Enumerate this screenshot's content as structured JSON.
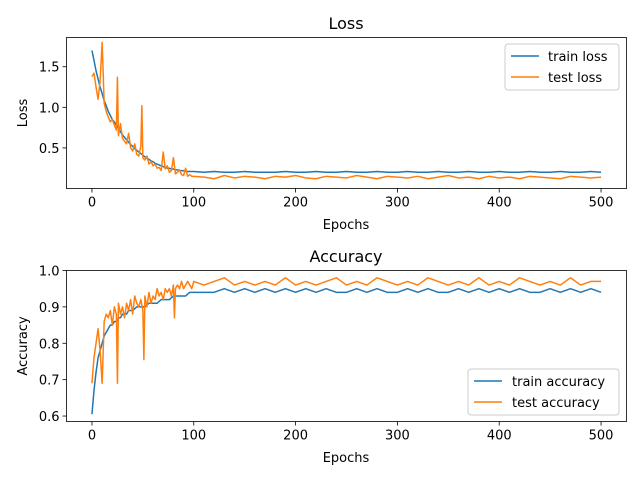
{
  "chart_data": [
    {
      "type": "line",
      "title": "Loss",
      "xlabel": "Epochs",
      "ylabel": "Loss",
      "xlim": [
        -25,
        525
      ],
      "ylim": [
        0.0,
        1.86
      ],
      "xticks": [
        0,
        100,
        200,
        300,
        400,
        500
      ],
      "yticks": [
        0.5,
        1.0,
        1.5
      ],
      "ytick_labels": [
        "0.5",
        "1.0",
        "1.5"
      ],
      "legend_position": "upper-right",
      "series": [
        {
          "name": "train loss",
          "color": "#1f77b4",
          "x": [
            0,
            2,
            4,
            6,
            8,
            10,
            12,
            14,
            16,
            18,
            20,
            22,
            24,
            26,
            28,
            30,
            32,
            34,
            36,
            38,
            40,
            42,
            44,
            46,
            48,
            50,
            52,
            54,
            56,
            58,
            60,
            62,
            64,
            66,
            68,
            70,
            72,
            74,
            76,
            78,
            80,
            82,
            84,
            86,
            88,
            90,
            92,
            94,
            96,
            98,
            100,
            110,
            120,
            130,
            140,
            150,
            160,
            170,
            180,
            190,
            200,
            210,
            220,
            230,
            240,
            250,
            260,
            270,
            280,
            290,
            300,
            310,
            320,
            330,
            340,
            350,
            360,
            370,
            380,
            390,
            400,
            410,
            420,
            430,
            440,
            450,
            460,
            470,
            480,
            490,
            500
          ],
          "y": [
            1.7,
            1.58,
            1.45,
            1.35,
            1.25,
            1.17,
            1.08,
            1.02,
            0.95,
            0.9,
            0.85,
            0.82,
            0.78,
            0.74,
            0.7,
            0.66,
            0.63,
            0.6,
            0.57,
            0.54,
            0.52,
            0.49,
            0.47,
            0.45,
            0.43,
            0.41,
            0.39,
            0.37,
            0.36,
            0.34,
            0.33,
            0.31,
            0.3,
            0.29,
            0.28,
            0.27,
            0.26,
            0.25,
            0.25,
            0.24,
            0.24,
            0.23,
            0.23,
            0.22,
            0.22,
            0.22,
            0.21,
            0.21,
            0.21,
            0.21,
            0.21,
            0.2,
            0.21,
            0.2,
            0.2,
            0.21,
            0.2,
            0.2,
            0.2,
            0.21,
            0.2,
            0.2,
            0.21,
            0.2,
            0.2,
            0.21,
            0.2,
            0.2,
            0.21,
            0.2,
            0.2,
            0.21,
            0.2,
            0.2,
            0.21,
            0.2,
            0.2,
            0.21,
            0.2,
            0.2,
            0.21,
            0.2,
            0.2,
            0.21,
            0.2,
            0.2,
            0.21,
            0.2,
            0.2,
            0.21,
            0.2
          ]
        },
        {
          "name": "test loss",
          "color": "#ff7f0e",
          "x": [
            0,
            2,
            4,
            6,
            8,
            10,
            12,
            14,
            16,
            18,
            20,
            22,
            24,
            25,
            26,
            28,
            30,
            32,
            34,
            36,
            38,
            40,
            42,
            44,
            46,
            48,
            49,
            50,
            52,
            54,
            56,
            58,
            60,
            62,
            64,
            66,
            68,
            70,
            72,
            74,
            76,
            78,
            80,
            82,
            84,
            86,
            88,
            90,
            92,
            94,
            96,
            98,
            100,
            110,
            120,
            130,
            140,
            150,
            160,
            170,
            180,
            190,
            200,
            210,
            220,
            230,
            240,
            250,
            260,
            270,
            280,
            290,
            300,
            310,
            320,
            330,
            340,
            350,
            360,
            370,
            380,
            390,
            400,
            410,
            420,
            430,
            440,
            450,
            460,
            470,
            480,
            490,
            500
          ],
          "y": [
            1.38,
            1.42,
            1.25,
            1.1,
            1.32,
            1.8,
            1.05,
            0.95,
            0.88,
            0.82,
            0.85,
            0.78,
            0.72,
            1.37,
            0.65,
            0.8,
            0.62,
            0.58,
            0.55,
            0.68,
            0.5,
            0.46,
            0.55,
            0.42,
            0.4,
            0.52,
            1.02,
            0.38,
            0.35,
            0.4,
            0.3,
            0.33,
            0.28,
            0.3,
            0.25,
            0.26,
            0.22,
            0.45,
            0.24,
            0.28,
            0.2,
            0.22,
            0.38,
            0.18,
            0.2,
            0.23,
            0.17,
            0.16,
            0.25,
            0.15,
            0.17,
            0.15,
            0.15,
            0.14,
            0.12,
            0.16,
            0.13,
            0.15,
            0.14,
            0.12,
            0.15,
            0.14,
            0.16,
            0.13,
            0.12,
            0.15,
            0.14,
            0.13,
            0.16,
            0.14,
            0.12,
            0.15,
            0.14,
            0.13,
            0.15,
            0.12,
            0.14,
            0.16,
            0.13,
            0.14,
            0.12,
            0.15,
            0.13,
            0.14,
            0.12,
            0.15,
            0.14,
            0.13,
            0.12,
            0.15,
            0.14,
            0.13,
            0.14
          ]
        }
      ]
    },
    {
      "type": "line",
      "title": "Accuracy",
      "xlabel": "Epochs",
      "ylabel": "Accuracy",
      "xlim": [
        -25,
        525
      ],
      "ylim": [
        0.585,
        1.0
      ],
      "xticks": [
        0,
        100,
        200,
        300,
        400,
        500
      ],
      "yticks": [
        0.6,
        0.7,
        0.8,
        0.9,
        1.0
      ],
      "ytick_labels": [
        "0.6",
        "0.7",
        "0.8",
        "0.9",
        "1.0"
      ],
      "legend_position": "lower-right",
      "series": [
        {
          "name": "train accuracy",
          "color": "#1f77b4",
          "x": [
            0,
            2,
            4,
            6,
            8,
            10,
            12,
            14,
            16,
            18,
            20,
            22,
            24,
            26,
            28,
            30,
            32,
            34,
            36,
            38,
            40,
            44,
            48,
            52,
            56,
            60,
            64,
            68,
            72,
            76,
            80,
            84,
            88,
            92,
            96,
            100,
            110,
            120,
            130,
            140,
            150,
            160,
            170,
            180,
            190,
            200,
            210,
            220,
            230,
            240,
            250,
            260,
            270,
            280,
            290,
            300,
            310,
            320,
            330,
            340,
            350,
            360,
            370,
            380,
            390,
            400,
            410,
            420,
            430,
            440,
            450,
            460,
            470,
            480,
            490,
            500
          ],
          "y": [
            0.605,
            0.67,
            0.72,
            0.76,
            0.78,
            0.8,
            0.82,
            0.83,
            0.84,
            0.85,
            0.85,
            0.86,
            0.86,
            0.87,
            0.87,
            0.88,
            0.88,
            0.88,
            0.89,
            0.89,
            0.89,
            0.9,
            0.9,
            0.9,
            0.91,
            0.91,
            0.91,
            0.92,
            0.92,
            0.92,
            0.93,
            0.93,
            0.93,
            0.93,
            0.94,
            0.94,
            0.94,
            0.94,
            0.95,
            0.94,
            0.95,
            0.94,
            0.95,
            0.94,
            0.95,
            0.94,
            0.95,
            0.94,
            0.95,
            0.94,
            0.94,
            0.95,
            0.94,
            0.95,
            0.94,
            0.94,
            0.95,
            0.94,
            0.95,
            0.94,
            0.94,
            0.95,
            0.94,
            0.95,
            0.94,
            0.95,
            0.94,
            0.95,
            0.94,
            0.94,
            0.95,
            0.94,
            0.95,
            0.94,
            0.95,
            0.94
          ]
        },
        {
          "name": "test accuracy",
          "color": "#ff7f0e",
          "x": [
            0,
            2,
            4,
            6,
            8,
            10,
            12,
            14,
            16,
            18,
            20,
            22,
            24,
            25,
            26,
            28,
            30,
            32,
            34,
            36,
            38,
            40,
            42,
            44,
            46,
            48,
            50,
            51,
            52,
            54,
            56,
            58,
            60,
            62,
            64,
            66,
            68,
            70,
            72,
            74,
            76,
            78,
            80,
            81,
            82,
            84,
            86,
            88,
            90,
            92,
            94,
            96,
            98,
            100,
            110,
            120,
            130,
            140,
            150,
            160,
            170,
            180,
            190,
            200,
            210,
            220,
            230,
            240,
            250,
            260,
            270,
            280,
            290,
            300,
            310,
            320,
            330,
            340,
            350,
            360,
            370,
            380,
            390,
            400,
            410,
            420,
            430,
            440,
            450,
            460,
            470,
            480,
            490,
            500
          ],
          "y": [
            0.69,
            0.76,
            0.8,
            0.84,
            0.78,
            0.69,
            0.86,
            0.88,
            0.87,
            0.89,
            0.85,
            0.9,
            0.88,
            0.69,
            0.91,
            0.88,
            0.9,
            0.87,
            0.91,
            0.89,
            0.92,
            0.88,
            0.93,
            0.91,
            0.9,
            0.92,
            0.89,
            0.755,
            0.93,
            0.9,
            0.94,
            0.91,
            0.93,
            0.92,
            0.95,
            0.93,
            0.94,
            0.92,
            0.95,
            0.94,
            0.95,
            0.93,
            0.96,
            0.87,
            0.95,
            0.96,
            0.95,
            0.97,
            0.95,
            0.96,
            0.97,
            0.96,
            0.95,
            0.97,
            0.96,
            0.97,
            0.98,
            0.96,
            0.97,
            0.96,
            0.97,
            0.96,
            0.98,
            0.96,
            0.97,
            0.96,
            0.97,
            0.98,
            0.96,
            0.97,
            0.96,
            0.98,
            0.97,
            0.96,
            0.97,
            0.96,
            0.98,
            0.97,
            0.96,
            0.97,
            0.96,
            0.98,
            0.96,
            0.97,
            0.96,
            0.98,
            0.97,
            0.96,
            0.97,
            0.96,
            0.98,
            0.96,
            0.97,
            0.97
          ]
        }
      ]
    }
  ]
}
